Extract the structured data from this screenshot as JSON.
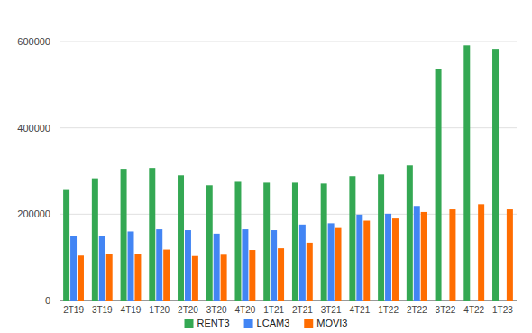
{
  "chart_data": {
    "type": "bar",
    "categories": [
      "2T19",
      "3T19",
      "4T19",
      "1T20",
      "2T20",
      "3T20",
      "4T20",
      "1T21",
      "2T21",
      "3T21",
      "4T21",
      "1T22",
      "2T22",
      "3T22",
      "4T22",
      "1T23"
    ],
    "series": [
      {
        "name": "RENT3",
        "color": "#34a853",
        "values": [
          258000,
          283000,
          305000,
          307000,
          290000,
          267000,
          275000,
          273000,
          273000,
          271000,
          288000,
          292000,
          313000,
          537000,
          591000,
          583000
        ]
      },
      {
        "name": "LCAM3",
        "color": "#4285f4",
        "values": [
          150000,
          150000,
          160000,
          165000,
          163000,
          155000,
          165000,
          163000,
          176000,
          179000,
          199000,
          201000,
          219000,
          null,
          null,
          null
        ]
      },
      {
        "name": "MOVI3",
        "color": "#ff6d01",
        "values": [
          104000,
          108000,
          108000,
          118000,
          103000,
          106000,
          117000,
          121000,
          134000,
          168000,
          185000,
          190000,
          205000,
          211000,
          223000,
          211000
        ]
      }
    ],
    "ylim": [
      0,
      600000
    ],
    "yticks": [
      0,
      200000,
      400000,
      600000
    ],
    "grid": true,
    "legend": "bottom"
  }
}
